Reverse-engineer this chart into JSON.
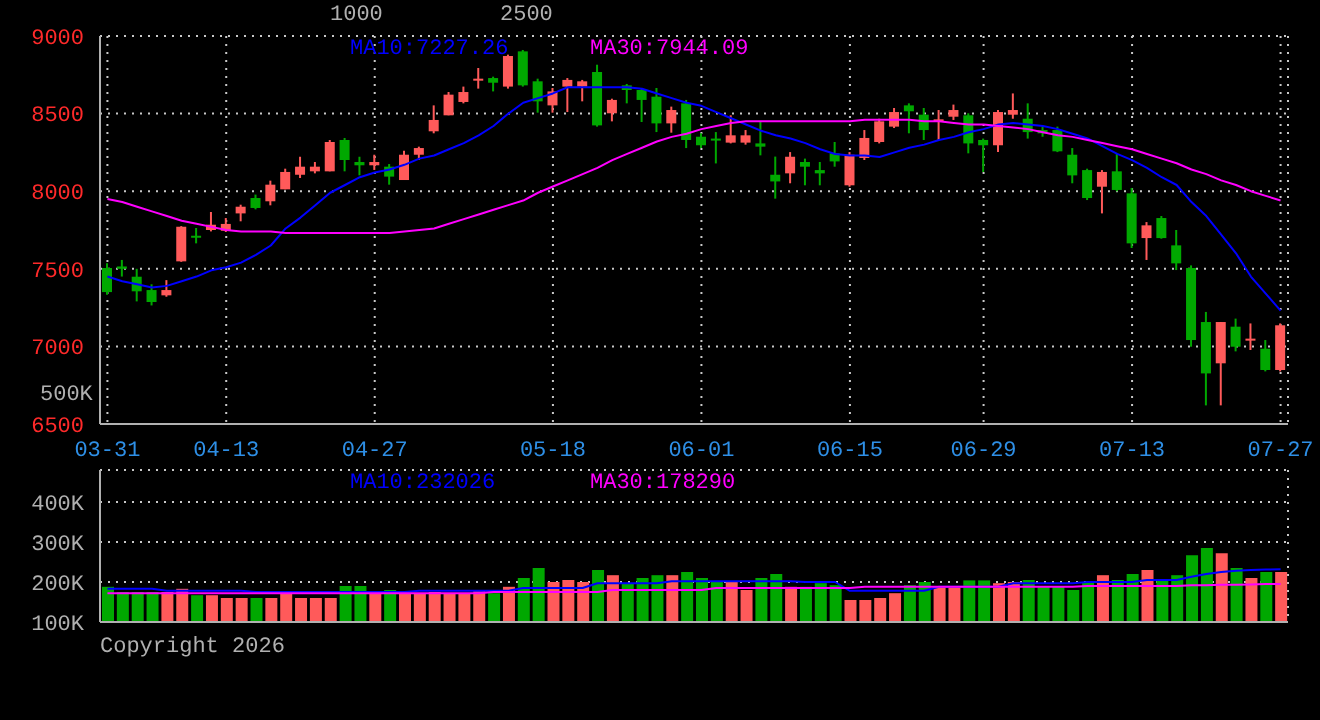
{
  "chart_data": [
    {
      "type": "candlestick",
      "categories": [
        "03-31",
        null,
        null,
        null,
        null,
        null,
        null,
        null,
        "04-13",
        null,
        null,
        null,
        null,
        null,
        null,
        null,
        null,
        null,
        "04-27",
        null,
        null,
        null,
        null,
        null,
        null,
        null,
        null,
        null,
        null,
        null,
        "05-18",
        null,
        null,
        null,
        null,
        null,
        null,
        null,
        null,
        null,
        "06-01",
        null,
        null,
        null,
        null,
        null,
        null,
        null,
        null,
        null,
        "06-15",
        null,
        null,
        null,
        null,
        null,
        null,
        null,
        null,
        "06-29",
        null,
        null,
        null,
        null,
        null,
        null,
        null,
        null,
        null,
        "07-13",
        null,
        null,
        null,
        null,
        null,
        null,
        null,
        null,
        null,
        "07-27"
      ],
      "ohlc": [
        [
          7505,
          7535,
          7333,
          7350
        ],
        [
          7515,
          7557,
          7450,
          7500
        ],
        [
          7449,
          7500,
          7290,
          7355
        ],
        [
          7363,
          7400,
          7264,
          7286
        ],
        [
          7329,
          7427,
          7320,
          7363
        ],
        [
          7548,
          7775,
          7545,
          7771
        ],
        [
          7713,
          7763,
          7664,
          7705
        ],
        [
          7750,
          7866,
          7741,
          7784
        ],
        [
          7745,
          7827,
          7737,
          7789
        ],
        [
          7857,
          7913,
          7806,
          7900
        ],
        [
          7956,
          7978,
          7883,
          7892
        ],
        [
          7935,
          8068,
          7909,
          8042
        ],
        [
          8012,
          8145,
          8012,
          8124
        ],
        [
          8106,
          8222,
          8085,
          8158
        ],
        [
          8128,
          8188,
          8115,
          8158
        ],
        [
          8128,
          8330,
          8128,
          8317
        ],
        [
          8330,
          8343,
          8128,
          8201
        ],
        [
          8188,
          8222,
          8102,
          8167
        ],
        [
          8167,
          8235,
          8137,
          8188
        ],
        [
          8158,
          8175,
          8042,
          8094
        ],
        [
          8072,
          8261,
          8072,
          8235
        ],
        [
          8235,
          8287,
          8201,
          8278
        ],
        [
          8386,
          8553,
          8373,
          8459
        ],
        [
          8489,
          8639,
          8489,
          8622
        ],
        [
          8575,
          8674,
          8566,
          8639
        ],
        [
          8717,
          8794,
          8661,
          8725
        ],
        [
          8729,
          8738,
          8643,
          8699
        ],
        [
          8674,
          8880,
          8661,
          8871
        ],
        [
          8901,
          8910,
          8674,
          8682
        ],
        [
          8708,
          8725,
          8506,
          8579
        ],
        [
          8553,
          8665,
          8506,
          8643
        ],
        [
          8674,
          8729,
          8510,
          8717
        ],
        [
          8674,
          8717,
          8579,
          8708
        ],
        [
          8768,
          8815,
          8416,
          8424
        ],
        [
          8502,
          8596,
          8450,
          8588
        ],
        [
          8682,
          8691,
          8566,
          8652
        ],
        [
          8652,
          8665,
          8446,
          8588
        ],
        [
          8609,
          8665,
          8381,
          8437
        ],
        [
          8437,
          8545,
          8377,
          8523
        ],
        [
          8566,
          8588,
          8278,
          8330
        ],
        [
          8351,
          8373,
          8278,
          8296
        ],
        [
          8339,
          8381,
          8179,
          8330
        ],
        [
          8313,
          8489,
          8308,
          8360
        ],
        [
          8313,
          8394,
          8300,
          8360
        ],
        [
          8308,
          8446,
          8231,
          8287
        ],
        [
          8106,
          8223,
          7952,
          8063
        ],
        [
          8115,
          8252,
          8051,
          8222
        ],
        [
          8188,
          8210,
          8038,
          8158
        ],
        [
          8136,
          8188,
          8038,
          8115
        ],
        [
          8244,
          8317,
          8158,
          8192
        ],
        [
          8038,
          8252,
          8029,
          8235
        ],
        [
          8214,
          8394,
          8201,
          8343
        ],
        [
          8317,
          8467,
          8308,
          8450
        ],
        [
          8416,
          8536,
          8407,
          8510
        ],
        [
          8553,
          8566,
          8373,
          8515
        ],
        [
          8493,
          8536,
          8330,
          8394
        ],
        [
          8455,
          8523,
          8330,
          8463
        ],
        [
          8480,
          8558,
          8459,
          8523
        ],
        [
          8489,
          8502,
          8244,
          8308
        ],
        [
          8330,
          8339,
          8124,
          8296
        ],
        [
          8296,
          8523,
          8253,
          8510
        ],
        [
          8493,
          8630,
          8467,
          8523
        ],
        [
          8467,
          8566,
          8339,
          8381
        ],
        [
          8394,
          8416,
          8351,
          8373
        ],
        [
          8394,
          8416,
          8252,
          8257
        ],
        [
          8235,
          8278,
          8051,
          8102
        ],
        [
          8136,
          8145,
          7943,
          7956
        ],
        [
          8029,
          8136,
          7857,
          8124
        ],
        [
          8128,
          8244,
          7999,
          8008
        ],
        [
          7986,
          8021,
          7634,
          7664
        ],
        [
          7698,
          7801,
          7557,
          7780
        ],
        [
          7827,
          7840,
          7694,
          7698
        ],
        [
          7651,
          7750,
          7492,
          7535
        ],
        [
          7505,
          7522,
          6998,
          7041
        ],
        [
          7157,
          7222,
          6620,
          6826
        ],
        [
          6891,
          7157,
          6620,
          7157
        ],
        [
          7127,
          7179,
          6968,
          6998
        ],
        [
          7045,
          7148,
          6977,
          7050
        ],
        [
          6985,
          7041,
          6839,
          6848
        ],
        [
          6848,
          7148,
          6839,
          7136
        ]
      ],
      "colors": [
        "#00a800",
        "#00a800",
        "#00a800",
        "#00a800",
        "#ff5a5a",
        "#ff5a5a",
        "#00a800",
        "#ff5a5a",
        "#ff5a5a",
        "#ff5a5a",
        "#00a800",
        "#ff5a5a",
        "#ff5a5a",
        "#ff5a5a",
        "#ff5a5a",
        "#ff5a5a",
        "#00a800",
        "#00a800",
        "#ff5a5a",
        "#00a800",
        "#ff5a5a",
        "#ff5a5a",
        "#ff5a5a",
        "#ff5a5a",
        "#ff5a5a",
        "#ff5a5a",
        "#00a800",
        "#ff5a5a",
        "#00a800",
        "#00a800",
        "#ff5a5a",
        "#ff5a5a",
        "#ff5a5a",
        "#00a800",
        "#ff5a5a",
        "#00a800",
        "#00a800",
        "#00a800",
        "#ff5a5a",
        "#00a800",
        "#00a800",
        "#00a800",
        "#ff5a5a",
        "#ff5a5a",
        "#00a800",
        "#00a800",
        "#ff5a5a",
        "#00a800",
        "#00a800",
        "#00a800",
        "#ff5a5a",
        "#ff5a5a",
        "#ff5a5a",
        "#ff5a5a",
        "#00a800",
        "#00a800",
        "#ff5a5a",
        "#ff5a5a",
        "#00a800",
        "#00a800",
        "#ff5a5a",
        "#ff5a5a",
        "#00a800",
        "#00a800",
        "#00a800",
        "#00a800",
        "#00a800",
        "#ff5a5a",
        "#00a800",
        "#00a800",
        "#ff5a5a",
        "#00a800",
        "#00a800",
        "#00a800",
        "#00a800",
        "#ff5a5a",
        "#00a800",
        "#ff5a5a",
        "#00a800",
        "#ff5a5a"
      ],
      "series": [
        {
          "name": "MA10:7227.26",
          "type": "line",
          "color": "#0000ff",
          "values": [
            7450,
            7420,
            7400,
            7380,
            7390,
            7420,
            7450,
            7490,
            7510,
            7540,
            7590,
            7650,
            7760,
            7830,
            7910,
            7990,
            8040,
            8090,
            8120,
            8140,
            8170,
            8210,
            8230,
            8270,
            8310,
            8360,
            8420,
            8500,
            8570,
            8600,
            8630,
            8670,
            8670,
            8670,
            8670,
            8670,
            8660,
            8630,
            8600,
            8570,
            8550,
            8510,
            8470,
            8430,
            8390,
            8360,
            8340,
            8310,
            8270,
            8240,
            8230,
            8230,
            8220,
            8250,
            8280,
            8300,
            8330,
            8350,
            8380,
            8400,
            8430,
            8440,
            8430,
            8420,
            8400,
            8370,
            8340,
            8290,
            8240,
            8200,
            8150,
            8090,
            8040,
            7930,
            7840,
            7720,
            7600,
            7450,
            7340,
            7230
          ]
        },
        {
          "name": "MA30:7944.09",
          "type": "line",
          "color": "#ff00ff",
          "values": [
            7950,
            7930,
            7900,
            7870,
            7840,
            7810,
            7790,
            7770,
            7750,
            7740,
            7740,
            7740,
            7730,
            7730,
            7730,
            7730,
            7730,
            7730,
            7730,
            7730,
            7740,
            7750,
            7760,
            7790,
            7820,
            7850,
            7880,
            7910,
            7940,
            7990,
            8030,
            8070,
            8110,
            8150,
            8200,
            8240,
            8280,
            8320,
            8350,
            8370,
            8400,
            8420,
            8440,
            8450,
            8450,
            8450,
            8450,
            8450,
            8450,
            8450,
            8450,
            8460,
            8460,
            8460,
            8460,
            8450,
            8450,
            8440,
            8430,
            8430,
            8420,
            8410,
            8400,
            8380,
            8360,
            8350,
            8330,
            8310,
            8290,
            8270,
            8240,
            8210,
            8180,
            8140,
            8110,
            8070,
            8040,
            8000,
            7970,
            7940
          ]
        }
      ],
      "ylim": [
        6500,
        9000
      ],
      "yticks": [
        6500,
        7000,
        7500,
        8000,
        8500,
        9000
      ],
      "grid": true,
      "legend": "top",
      "annotations": [
        "1000",
        "2500",
        "500K"
      ]
    },
    {
      "type": "bar",
      "categories": [
        null,
        null,
        null,
        null,
        null,
        null,
        null,
        null,
        null,
        null,
        null,
        null,
        null,
        null,
        null,
        null,
        null,
        null,
        null,
        null,
        null,
        null,
        null,
        null,
        null,
        null,
        null,
        null,
        null,
        null,
        null,
        null,
        null,
        null,
        null,
        null,
        null,
        null,
        null,
        null,
        null,
        null,
        null,
        null,
        null,
        null,
        null,
        null,
        null,
        null,
        null,
        null,
        null,
        null,
        null,
        null,
        null,
        null,
        null,
        null,
        null,
        null,
        null,
        null,
        null,
        null,
        null,
        null,
        null,
        null,
        null,
        null,
        null,
        null,
        null,
        null,
        null,
        null,
        null,
        null
      ],
      "values": [
        188000,
        175000,
        175000,
        175000,
        175000,
        183000,
        167000,
        167000,
        160000,
        160000,
        160000,
        160000,
        172000,
        160000,
        160000,
        160000,
        190000,
        190000,
        172000,
        180000,
        172000,
        172000,
        175000,
        172000,
        172000,
        180000,
        172000,
        188000,
        210000,
        235000,
        200000,
        205000,
        200000,
        230000,
        217000,
        197000,
        210000,
        217000,
        217000,
        225000,
        210000,
        202000,
        202000,
        180000,
        210000,
        220000,
        188000,
        188000,
        197000,
        192000,
        155000,
        155000,
        160000,
        172000,
        192000,
        200000,
        188000,
        188000,
        204000,
        204000,
        197000,
        200000,
        205000,
        188000,
        188000,
        180000,
        200000,
        217000,
        205000,
        220000,
        230000,
        205000,
        217000,
        267000,
        285000,
        272000,
        235000,
        210000,
        225000,
        225000
      ],
      "colors": [
        "#00a800",
        "#00a800",
        "#00a800",
        "#00a800",
        "#ff5a5a",
        "#ff5a5a",
        "#00a800",
        "#ff5a5a",
        "#ff5a5a",
        "#ff5a5a",
        "#00a800",
        "#ff5a5a",
        "#ff5a5a",
        "#ff5a5a",
        "#ff5a5a",
        "#ff5a5a",
        "#00a800",
        "#00a800",
        "#ff5a5a",
        "#00a800",
        "#ff5a5a",
        "#ff5a5a",
        "#ff5a5a",
        "#ff5a5a",
        "#ff5a5a",
        "#ff5a5a",
        "#00a800",
        "#ff5a5a",
        "#00a800",
        "#00a800",
        "#ff5a5a",
        "#ff5a5a",
        "#ff5a5a",
        "#00a800",
        "#ff5a5a",
        "#00a800",
        "#00a800",
        "#00a800",
        "#ff5a5a",
        "#00a800",
        "#00a800",
        "#00a800",
        "#ff5a5a",
        "#ff5a5a",
        "#00a800",
        "#00a800",
        "#ff5a5a",
        "#00a800",
        "#00a800",
        "#00a800",
        "#ff5a5a",
        "#ff5a5a",
        "#ff5a5a",
        "#ff5a5a",
        "#00a800",
        "#00a800",
        "#ff5a5a",
        "#ff5a5a",
        "#00a800",
        "#00a800",
        "#ff5a5a",
        "#ff5a5a",
        "#00a800",
        "#00a800",
        "#00a800",
        "#00a800",
        "#00a800",
        "#ff5a5a",
        "#00a800",
        "#00a800",
        "#ff5a5a",
        "#00a800",
        "#00a800",
        "#00a800",
        "#00a800",
        "#ff5a5a",
        "#00a800",
        "#ff5a5a",
        "#00a800",
        "#ff5a5a"
      ],
      "series": [
        {
          "name": "MA10:232026",
          "type": "line",
          "color": "#0000ff",
          "values": [
            183000,
            183000,
            183000,
            183000,
            178000,
            178000,
            178000,
            178000,
            178000,
            178000,
            175000,
            175000,
            175000,
            175000,
            175000,
            175000,
            175000,
            175000,
            175000,
            175000,
            175000,
            178000,
            178000,
            178000,
            178000,
            178000,
            178000,
            178000,
            185000,
            185000,
            185000,
            185000,
            185000,
            197000,
            197000,
            197000,
            197000,
            197000,
            202000,
            202000,
            202000,
            202000,
            202000,
            202000,
            202000,
            202000,
            202000,
            200000,
            200000,
            200000,
            178000,
            178000,
            178000,
            178000,
            178000,
            178000,
            188000,
            188000,
            188000,
            188000,
            188000,
            197000,
            197000,
            197000,
            197000,
            197000,
            200000,
            200000,
            200000,
            200000,
            205000,
            205000,
            205000,
            213000,
            220000,
            225000,
            228000,
            230000,
            231000,
            232000
          ]
        },
        {
          "name": "MA30:178290",
          "type": "line",
          "color": "#ff00ff",
          "values": [
            172000,
            172000,
            172000,
            172000,
            172000,
            172000,
            172000,
            172000,
            172000,
            172000,
            172000,
            172000,
            172000,
            172000,
            172000,
            172000,
            172000,
            172000,
            172000,
            172000,
            172000,
            172000,
            172000,
            172000,
            172000,
            172000,
            175000,
            175000,
            175000,
            175000,
            175000,
            175000,
            175000,
            175000,
            180000,
            180000,
            180000,
            180000,
            180000,
            180000,
            180000,
            185000,
            185000,
            185000,
            185000,
            185000,
            185000,
            185000,
            185000,
            185000,
            185000,
            188000,
            188000,
            188000,
            188000,
            188000,
            188000,
            188000,
            188000,
            188000,
            188000,
            188000,
            188000,
            188000,
            188000,
            188000,
            190000,
            190000,
            190000,
            190000,
            190000,
            190000,
            190000,
            192000,
            192000,
            193000,
            193000,
            194000,
            195000,
            195000
          ]
        }
      ],
      "ylim": [
        100000,
        480000
      ],
      "yticks": [
        {
          "value": 100000,
          "label": "100K"
        },
        {
          "value": 200000,
          "label": "200K"
        },
        {
          "value": 300000,
          "label": "300K"
        },
        {
          "value": 400000,
          "label": "400K"
        }
      ],
      "tick_labels": "y",
      "grid": true,
      "legend": "top",
      "annotations": [
        "Copyright 2026"
      ]
    }
  ]
}
